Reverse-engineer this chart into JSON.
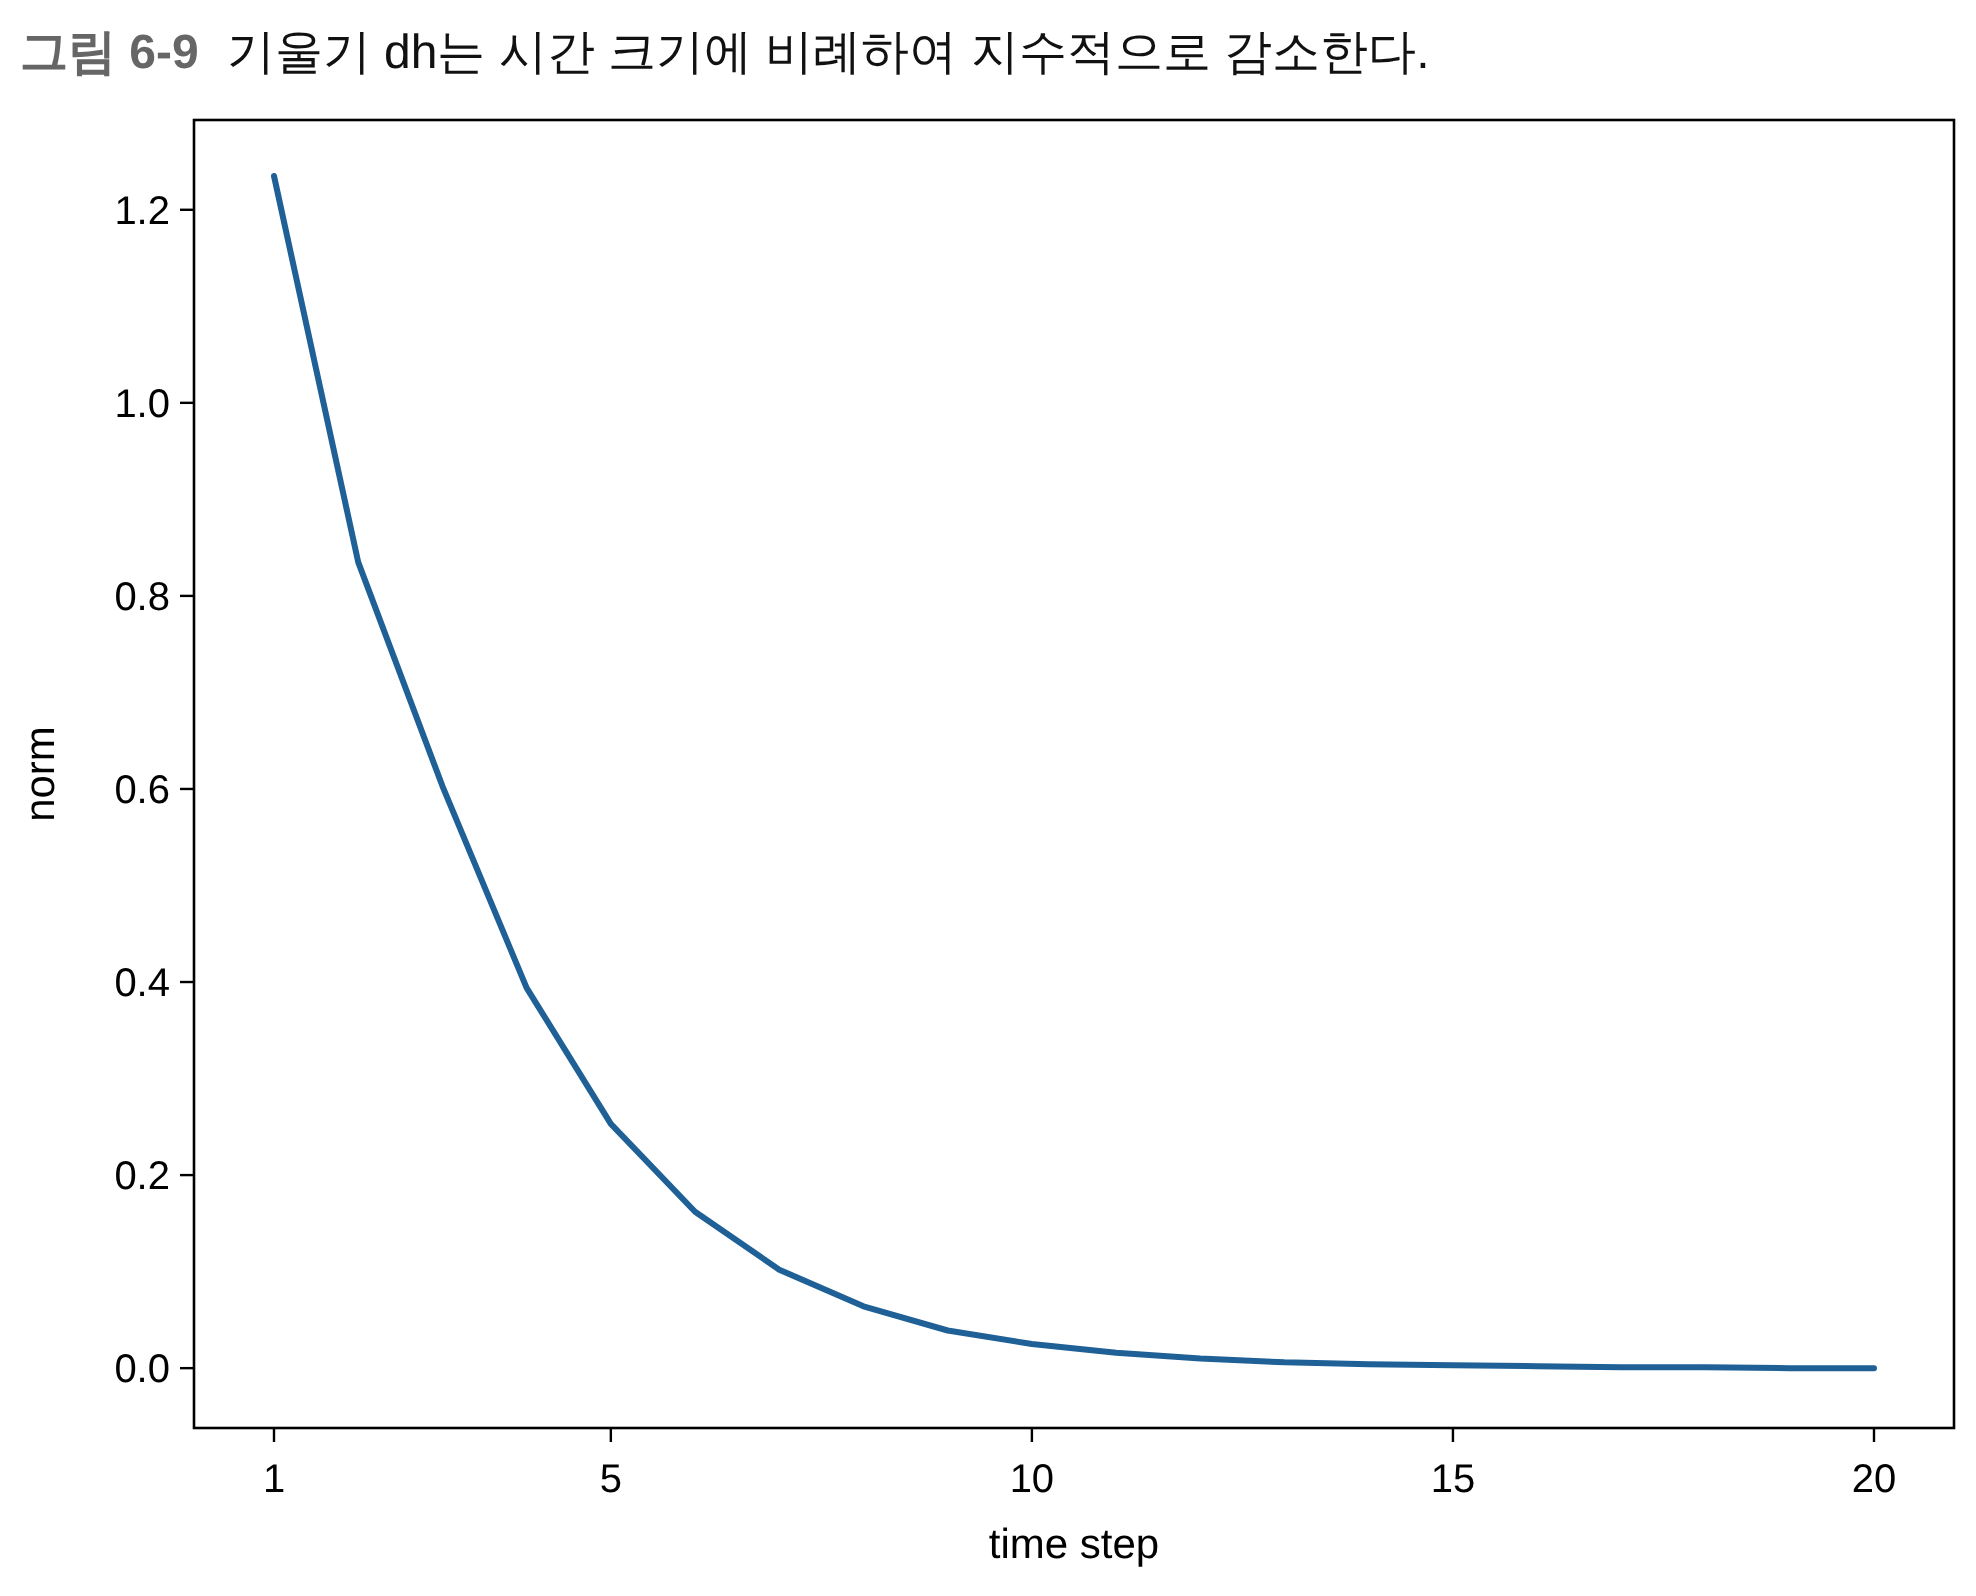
{
  "chart_data": {
    "type": "line",
    "title": "그림 6-9",
    "subtitle": "기울기 dh는 시간 크기에 비례하여 지수적으로 감소한다.",
    "xlabel": "time step",
    "ylabel": "norm",
    "x": [
      1,
      2,
      3,
      4,
      5,
      6,
      7,
      8,
      9,
      10,
      11,
      12,
      13,
      14,
      15,
      16,
      17,
      18,
      19,
      20
    ],
    "series": [
      {
        "color": "#1f6096",
        "values": [
          1.235,
          0.835,
          0.603,
          0.394,
          0.253,
          0.162,
          0.102,
          0.064,
          0.039,
          0.025,
          0.016,
          0.01,
          0.006,
          0.004,
          0.003,
          0.002,
          0.001,
          0.001,
          0.0,
          0.0
        ]
      }
    ],
    "xlim": [
      0.05,
      20.95
    ],
    "xticks": [
      1,
      5,
      10,
      15,
      20
    ],
    "ylim": [
      -0.062,
      1.293
    ],
    "yticks": [
      {
        "value": 0,
        "label": "0.0"
      },
      {
        "value": 0.2,
        "label": "0.2"
      },
      {
        "value": 0.4,
        "label": "0.4"
      },
      {
        "value": 0.6,
        "label": "0.6"
      },
      {
        "value": 0.8,
        "label": "0.8"
      },
      {
        "value": 1.0,
        "label": "1.0"
      },
      {
        "value": 1.2,
        "label": "1.2"
      }
    ],
    "grid": false,
    "marker": "none",
    "line_style": "solid"
  }
}
